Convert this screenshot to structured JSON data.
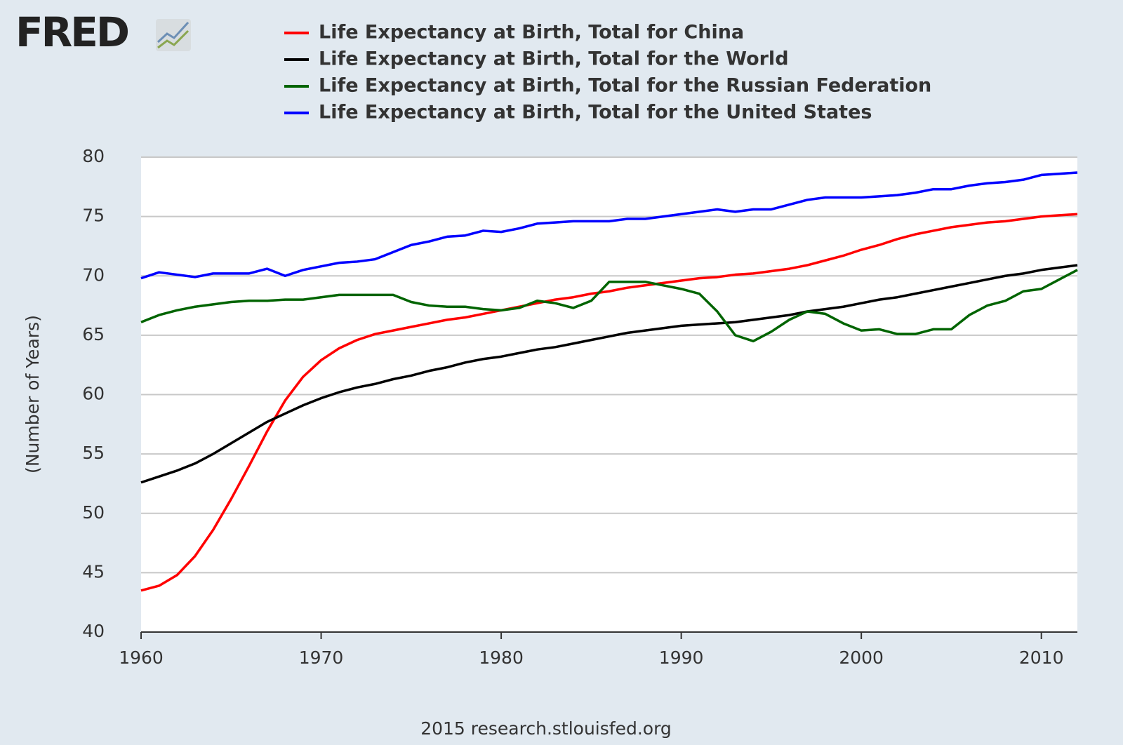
{
  "chart_data": {
    "type": "line",
    "logo": "FRED",
    "y_label": "(Number of Years)",
    "footer": "2015 research.stlouisfed.org",
    "x": [
      1960,
      1961,
      1962,
      1963,
      1964,
      1965,
      1966,
      1967,
      1968,
      1969,
      1970,
      1971,
      1972,
      1973,
      1974,
      1975,
      1976,
      1977,
      1978,
      1979,
      1980,
      1981,
      1982,
      1983,
      1984,
      1985,
      1986,
      1987,
      1988,
      1989,
      1990,
      1991,
      1992,
      1993,
      1994,
      1995,
      1996,
      1997,
      1998,
      1999,
      2000,
      2001,
      2002,
      2003,
      2004,
      2005,
      2006,
      2007,
      2008,
      2009,
      2010,
      2011,
      2012
    ],
    "series": [
      {
        "name": "Life Expectancy at Birth, Total for China",
        "color": "#ff0000",
        "values": [
          43.5,
          43.9,
          44.8,
          46.4,
          48.6,
          51.2,
          54.0,
          56.9,
          59.5,
          61.5,
          62.9,
          63.9,
          64.6,
          65.1,
          65.4,
          65.7,
          66.0,
          66.3,
          66.5,
          66.8,
          67.1,
          67.4,
          67.7,
          68.0,
          68.2,
          68.5,
          68.7,
          69.0,
          69.2,
          69.4,
          69.6,
          69.8,
          69.9,
          70.1,
          70.2,
          70.4,
          70.6,
          70.9,
          71.3,
          71.7,
          72.2,
          72.6,
          73.1,
          73.5,
          73.8,
          74.1,
          74.3,
          74.5,
          74.6,
          74.8,
          75.0,
          75.1,
          75.2
        ]
      },
      {
        "name": "Life Expectancy at Birth, Total for the World",
        "color": "#000000",
        "values": [
          52.6,
          53.1,
          53.6,
          54.2,
          55.0,
          55.9,
          56.8,
          57.7,
          58.4,
          59.1,
          59.7,
          60.2,
          60.6,
          60.9,
          61.3,
          61.6,
          62.0,
          62.3,
          62.7,
          63.0,
          63.2,
          63.5,
          63.8,
          64.0,
          64.3,
          64.6,
          64.9,
          65.2,
          65.4,
          65.6,
          65.8,
          65.9,
          66.0,
          66.1,
          66.3,
          66.5,
          66.7,
          67.0,
          67.2,
          67.4,
          67.7,
          68.0,
          68.2,
          68.5,
          68.8,
          69.1,
          69.4,
          69.7,
          70.0,
          70.2,
          70.5,
          70.7,
          70.9
        ]
      },
      {
        "name": "Life Expectancy at Birth, Total for the Russian Federation",
        "color": "#006400",
        "values": [
          66.1,
          66.7,
          67.1,
          67.4,
          67.6,
          67.8,
          67.9,
          67.9,
          68.0,
          68.0,
          68.2,
          68.4,
          68.4,
          68.4,
          68.4,
          67.8,
          67.5,
          67.4,
          67.4,
          67.2,
          67.1,
          67.3,
          67.9,
          67.7,
          67.3,
          67.9,
          69.5,
          69.5,
          69.5,
          69.2,
          68.9,
          68.5,
          67.0,
          65.0,
          64.5,
          65.3,
          66.3,
          67.0,
          66.8,
          66.0,
          65.4,
          65.5,
          65.1,
          65.1,
          65.5,
          65.5,
          66.7,
          67.5,
          67.9,
          68.7,
          68.9,
          69.7,
          70.5
        ]
      },
      {
        "name": "Life Expectancy at Birth, Total for the United States",
        "color": "#0000ff",
        "values": [
          69.8,
          70.3,
          70.1,
          69.9,
          70.2,
          70.2,
          70.2,
          70.6,
          70.0,
          70.5,
          70.8,
          71.1,
          71.2,
          71.4,
          72.0,
          72.6,
          72.9,
          73.3,
          73.4,
          73.8,
          73.7,
          74.0,
          74.4,
          74.5,
          74.6,
          74.6,
          74.6,
          74.8,
          74.8,
          75.0,
          75.2,
          75.4,
          75.6,
          75.4,
          75.6,
          75.6,
          76.0,
          76.4,
          76.6,
          76.6,
          76.6,
          76.7,
          76.8,
          77.0,
          77.3,
          77.3,
          77.6,
          77.8,
          77.9,
          78.1,
          78.5,
          78.6,
          78.7
        ]
      }
    ],
    "xlim": [
      1960,
      2012
    ],
    "xticks": [
      1960,
      1970,
      1980,
      1990,
      2000,
      2010
    ],
    "ylim": [
      40,
      80
    ],
    "yticks": [
      40,
      45,
      50,
      55,
      60,
      65,
      70,
      75,
      80
    ],
    "grid": true
  }
}
